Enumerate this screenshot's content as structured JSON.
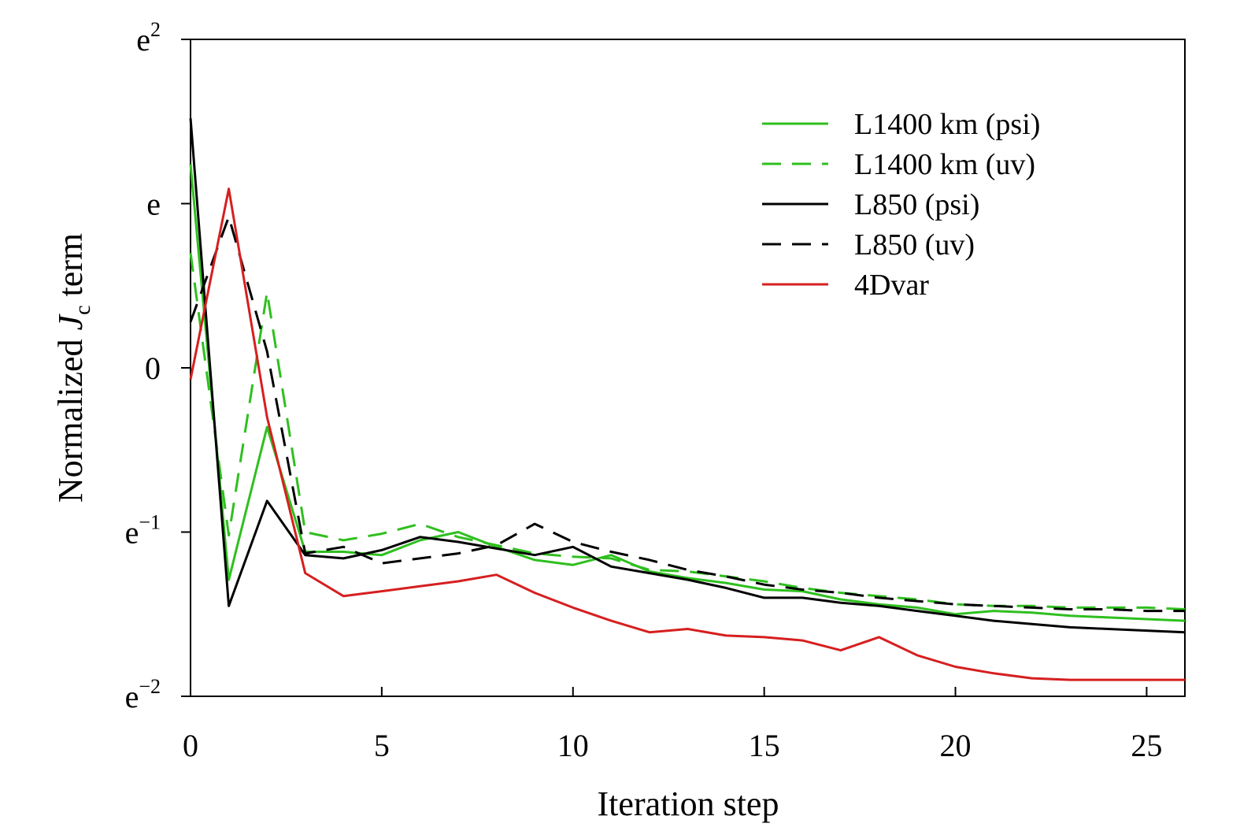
{
  "chart_data": {
    "type": "line",
    "title": "",
    "xlabel": "Iteration step",
    "ylabel": {
      "prefix": "Normalized ",
      "symbol": "J",
      "subscript": "c",
      "suffix": " term"
    },
    "xlim": [
      0,
      26
    ],
    "ylim": [
      -2,
      2
    ],
    "y_scale": "log (natural), ticks in powers of e",
    "xticks": [
      0,
      5,
      10,
      15,
      20,
      25
    ],
    "xtick_labels": [
      "0",
      "5",
      "10",
      "15",
      "20",
      "25"
    ],
    "yticks": [
      {
        "value": -2,
        "base": "e",
        "sup": "−2"
      },
      {
        "value": -1,
        "base": "e",
        "sup": "−1"
      },
      {
        "value": 0,
        "base": "0",
        "sup": ""
      },
      {
        "value": 1,
        "base": "e",
        "sup": ""
      },
      {
        "value": 2,
        "base": "e",
        "sup": "2"
      }
    ],
    "legend_position": "top-right",
    "series": [
      {
        "name": "L1400 km (psi)",
        "color": "#2fbf1f",
        "dash": "solid",
        "values": [
          1.24,
          -1.29,
          -0.36,
          -1.12,
          -1.12,
          -1.14,
          -1.05,
          -1.0,
          -1.09,
          -1.17,
          -1.2,
          -1.14,
          -1.24,
          -1.28,
          -1.31,
          -1.35,
          -1.36,
          -1.41,
          -1.44,
          -1.46,
          -1.5,
          -1.48,
          -1.49,
          -1.51,
          -1.52,
          -1.53,
          -1.54
        ]
      },
      {
        "name": "L1400 km (uv)",
        "color": "#2fbf1f",
        "dash": "dashed",
        "values": [
          0.7,
          -1.02,
          0.46,
          -1.0,
          -1.05,
          -1.01,
          -0.95,
          -1.03,
          -1.08,
          -1.13,
          -1.15,
          -1.16,
          -1.23,
          -1.24,
          -1.27,
          -1.3,
          -1.34,
          -1.37,
          -1.39,
          -1.41,
          -1.44,
          -1.45,
          -1.45,
          -1.46,
          -1.46,
          -1.46,
          -1.47
        ]
      },
      {
        "name": "L850 (psi)",
        "color": "#000000",
        "dash": "solid",
        "values": [
          1.52,
          -1.45,
          -0.81,
          -1.14,
          -1.16,
          -1.11,
          -1.03,
          -1.06,
          -1.1,
          -1.14,
          -1.09,
          -1.21,
          -1.25,
          -1.29,
          -1.34,
          -1.4,
          -1.4,
          -1.43,
          -1.45,
          -1.48,
          -1.51,
          -1.54,
          -1.56,
          -1.58,
          -1.59,
          -1.6,
          -1.61
        ]
      },
      {
        "name": "L850 (uv)",
        "color": "#000000",
        "dash": "dashed",
        "values": [
          0.28,
          0.92,
          0.1,
          -1.13,
          -1.09,
          -1.19,
          -1.16,
          -1.13,
          -1.08,
          -0.95,
          -1.06,
          -1.12,
          -1.17,
          -1.23,
          -1.27,
          -1.32,
          -1.35,
          -1.37,
          -1.4,
          -1.42,
          -1.44,
          -1.45,
          -1.46,
          -1.47,
          -1.47,
          -1.48,
          -1.48
        ]
      },
      {
        "name": "4Dvar",
        "color": "#d61f1f",
        "dash": "solid",
        "values": [
          -0.07,
          1.09,
          -0.3,
          -1.25,
          -1.39,
          -1.36,
          -1.33,
          -1.3,
          -1.26,
          -1.37,
          -1.46,
          -1.54,
          -1.61,
          -1.59,
          -1.63,
          -1.64,
          -1.66,
          -1.72,
          -1.64,
          -1.75,
          -1.82,
          -1.86,
          -1.89,
          -1.9,
          -1.9,
          -1.9,
          -1.9
        ]
      }
    ]
  }
}
